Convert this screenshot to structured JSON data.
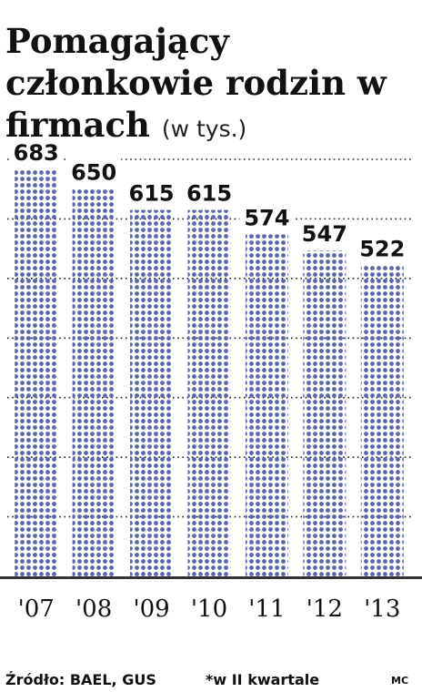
{
  "header": {
    "title": "Pomagający członkowie rodzin w firmach",
    "unit": "(w tys.)"
  },
  "footer": {
    "source": "Źródło: BAEL, GUS",
    "note": "*w II kwartale",
    "author": "MC"
  },
  "colors": {
    "dot": "#5a64b0",
    "text": "#111111",
    "grid": "#222222",
    "baseline": "#333333"
  },
  "chart_data": {
    "type": "bar",
    "categories": [
      "'07",
      "'08",
      "'09",
      "'10",
      "'11",
      "'12",
      "'13"
    ],
    "values": [
      683,
      650,
      615,
      615,
      574,
      547,
      522
    ],
    "data_labels": [
      "683",
      "650",
      "615",
      "615",
      "574",
      "547",
      "522"
    ],
    "ylim": [
      0,
      700
    ],
    "grid": true,
    "bar_fill": "dotted"
  }
}
